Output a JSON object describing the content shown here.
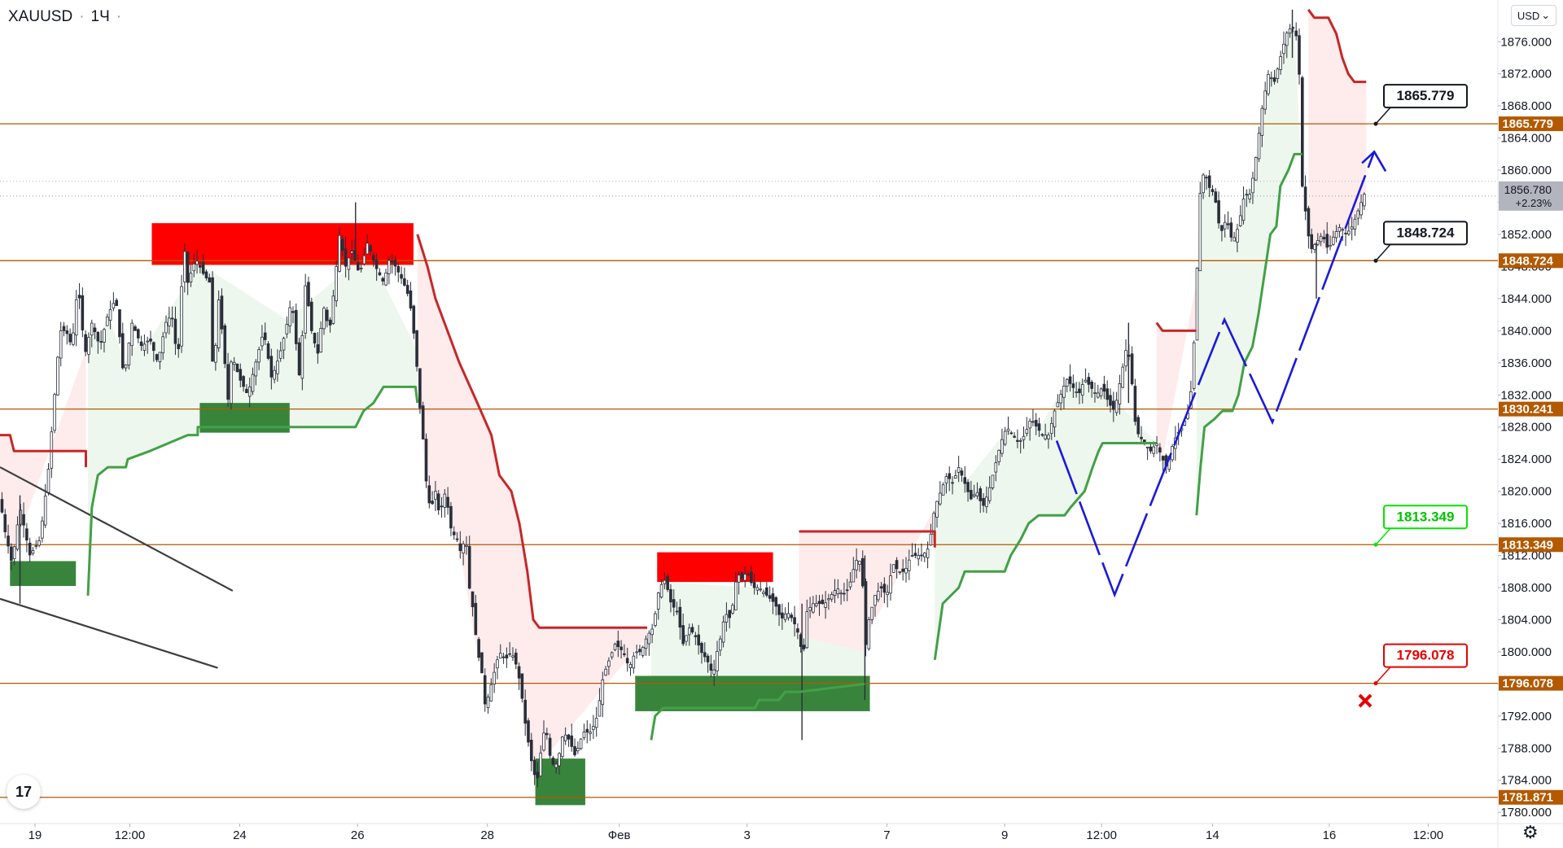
{
  "header": {
    "symbol": "XAUUSD",
    "timeframe": "1Ч",
    "currency": "USD",
    "currency_arrow": "⌄",
    "logo_text": "17"
  },
  "chart_data": {
    "type": "candlestick",
    "symbol": "XAUUSD",
    "timeframe": "1Ч",
    "ylim": [
      1778.6,
      1881.2
    ],
    "y_ticks": [
      "1876.000",
      "1872.000",
      "1868.000",
      "1864.000",
      "1860.000",
      "1856.000",
      "1852.000",
      "1848.000",
      "1844.000",
      "1840.000",
      "1836.000",
      "1832.000",
      "1828.000",
      "1824.000",
      "1820.000",
      "1816.000",
      "1812.000",
      "1808.000",
      "1804.000",
      "1800.000",
      "1796.000",
      "1792.000",
      "1788.000",
      "1784.000",
      "1780.000"
    ],
    "x_ticks": [
      "19",
      "12:00",
      "24",
      "26",
      "28",
      "Фев",
      "3",
      "7",
      "9",
      "12:00",
      "14",
      "16",
      "12:00"
    ],
    "last_price": "1856.780",
    "last_change": "+2.23%",
    "levels": [
      {
        "price": 1865.779,
        "label": "1865.779"
      },
      {
        "price": 1848.724,
        "label": "1848.724"
      },
      {
        "price": 1830.241,
        "label": "1830.241"
      },
      {
        "price": 1813.349,
        "label": "1813.349"
      },
      {
        "price": 1796.078,
        "label": "1796.078"
      },
      {
        "price": 1781.871,
        "label": "1781.871"
      }
    ],
    "callouts": [
      {
        "label": "1865.779",
        "style": "black"
      },
      {
        "label": "1848.724",
        "style": "black"
      },
      {
        "label": "1813.349",
        "style": "green"
      },
      {
        "label": "1796.078",
        "style": "red"
      }
    ],
    "price_path": [
      [
        0,
        1819
      ],
      [
        5,
        1815
      ],
      [
        12,
        1811
      ],
      [
        20,
        1818
      ],
      [
        30,
        1812
      ],
      [
        40,
        1814
      ],
      [
        48,
        1822
      ],
      [
        60,
        1840
      ],
      [
        66,
        1840
      ],
      [
        72,
        1838
      ],
      [
        78,
        1846
      ],
      [
        85,
        1837
      ],
      [
        92,
        1841
      ],
      [
        100,
        1838
      ],
      [
        108,
        1842
      ],
      [
        116,
        1844
      ],
      [
        124,
        1834
      ],
      [
        132,
        1841
      ],
      [
        142,
        1838
      ],
      [
        150,
        1839
      ],
      [
        158,
        1836
      ],
      [
        166,
        1841
      ],
      [
        172,
        1842
      ],
      [
        178,
        1836
      ],
      [
        184,
        1851
      ],
      [
        188,
        1846
      ],
      [
        196,
        1849
      ],
      [
        204,
        1847
      ],
      [
        210,
        1846
      ],
      [
        214,
        1832
      ],
      [
        218,
        1845
      ],
      [
        224,
        1838
      ],
      [
        228,
        1831
      ],
      [
        232,
        1837
      ],
      [
        240,
        1834
      ],
      [
        248,
        1832
      ],
      [
        256,
        1836
      ],
      [
        264,
        1840
      ],
      [
        272,
        1834
      ],
      [
        280,
        1837
      ],
      [
        286,
        1840
      ],
      [
        292,
        1844
      ],
      [
        300,
        1834
      ],
      [
        306,
        1846
      ],
      [
        312,
        1840
      ],
      [
        318,
        1837
      ],
      [
        324,
        1843
      ],
      [
        330,
        1840
      ],
      [
        336,
        1847
      ],
      [
        340,
        1852
      ],
      [
        346,
        1848
      ],
      [
        352,
        1850
      ],
      [
        360,
        1847
      ],
      [
        368,
        1851
      ],
      [
        376,
        1848
      ],
      [
        384,
        1846
      ],
      [
        390,
        1849
      ],
      [
        396,
        1848
      ],
      [
        404,
        1846
      ],
      [
        410,
        1844
      ],
      [
        416,
        1838
      ],
      [
        420,
        1831
      ],
      [
        424,
        1826
      ],
      [
        428,
        1819
      ],
      [
        432,
        1818
      ],
      [
        436,
        1820
      ],
      [
        440,
        1817
      ],
      [
        446,
        1820
      ],
      [
        452,
        1815
      ],
      [
        458,
        1814
      ],
      [
        462,
        1812
      ],
      [
        466,
        1815
      ],
      [
        470,
        1808
      ],
      [
        474,
        1805
      ],
      [
        478,
        1800
      ],
      [
        482,
        1798
      ],
      [
        486,
        1793
      ],
      [
        490,
        1795
      ],
      [
        494,
        1797
      ],
      [
        500,
        1800
      ],
      [
        506,
        1799
      ],
      [
        512,
        1800
      ],
      [
        518,
        1798
      ],
      [
        522,
        1795
      ],
      [
        526,
        1791
      ],
      [
        530,
        1788
      ],
      [
        534,
        1785
      ],
      [
        538,
        1784
      ],
      [
        542,
        1788
      ],
      [
        546,
        1791
      ],
      [
        552,
        1786
      ],
      [
        558,
        1786
      ],
      [
        564,
        1790
      ],
      [
        570,
        1789
      ],
      [
        576,
        1787
      ],
      [
        584,
        1790
      ],
      [
        592,
        1790
      ],
      [
        598,
        1792
      ],
      [
        604,
        1797
      ],
      [
        610,
        1799
      ],
      [
        616,
        1801
      ],
      [
        624,
        1800
      ],
      [
        630,
        1798
      ],
      [
        636,
        1800
      ],
      [
        642,
        1800
      ],
      [
        648,
        1802
      ],
      [
        654,
        1803
      ],
      [
        660,
        1808
      ],
      [
        666,
        1809
      ],
      [
        672,
        1806
      ],
      [
        678,
        1805
      ],
      [
        684,
        1801
      ],
      [
        690,
        1803
      ],
      [
        696,
        1802
      ],
      [
        702,
        1800
      ],
      [
        708,
        1799
      ],
      [
        714,
        1797
      ],
      [
        718,
        1800
      ],
      [
        722,
        1802
      ],
      [
        726,
        1805
      ],
      [
        730,
        1804
      ],
      [
        734,
        1806
      ],
      [
        738,
        1810
      ],
      [
        742,
        1809
      ],
      [
        748,
        1810
      ],
      [
        754,
        1808
      ],
      [
        760,
        1808
      ],
      [
        768,
        1807
      ],
      [
        776,
        1806
      ],
      [
        782,
        1804
      ],
      [
        788,
        1805
      ],
      [
        794,
        1804
      ],
      [
        800,
        1802
      ],
      [
        804,
        1799
      ],
      [
        808,
        1805
      ],
      [
        814,
        1806
      ],
      [
        820,
        1806
      ],
      [
        826,
        1806
      ],
      [
        832,
        1807
      ],
      [
        838,
        1808
      ],
      [
        844,
        1807
      ],
      [
        850,
        1808
      ],
      [
        856,
        1811
      ],
      [
        860,
        1812
      ],
      [
        864,
        1808
      ],
      [
        866,
        1800
      ],
      [
        870,
        1804
      ],
      [
        876,
        1807
      ],
      [
        882,
        1808
      ],
      [
        888,
        1807
      ],
      [
        894,
        1811
      ],
      [
        900,
        1810
      ],
      [
        906,
        1810
      ],
      [
        912,
        1812
      ],
      [
        918,
        1812
      ],
      [
        924,
        1812
      ],
      [
        930,
        1813
      ],
      [
        936,
        1818
      ],
      [
        942,
        1820
      ],
      [
        948,
        1822
      ],
      [
        954,
        1821
      ],
      [
        960,
        1823
      ],
      [
        966,
        1821
      ],
      [
        972,
        1819
      ],
      [
        978,
        1820
      ],
      [
        984,
        1818
      ],
      [
        990,
        1820
      ],
      [
        996,
        1823
      ],
      [
        1002,
        1826
      ],
      [
        1008,
        1828
      ],
      [
        1014,
        1827
      ],
      [
        1020,
        1826
      ],
      [
        1026,
        1827
      ],
      [
        1032,
        1829
      ],
      [
        1038,
        1828
      ],
      [
        1044,
        1827
      ],
      [
        1050,
        1827
      ],
      [
        1056,
        1830
      ],
      [
        1062,
        1832
      ],
      [
        1068,
        1834
      ],
      [
        1074,
        1833
      ],
      [
        1080,
        1832
      ],
      [
        1086,
        1834
      ],
      [
        1092,
        1833
      ],
      [
        1098,
        1832
      ],
      [
        1104,
        1833
      ],
      [
        1110,
        1831
      ],
      [
        1116,
        1830
      ],
      [
        1122,
        1834
      ],
      [
        1128,
        1838
      ],
      [
        1132,
        1836
      ],
      [
        1136,
        1829
      ],
      [
        1140,
        1827
      ],
      [
        1146,
        1826
      ],
      [
        1152,
        1825
      ],
      [
        1158,
        1826
      ],
      [
        1164,
        1824
      ],
      [
        1168,
        1823
      ],
      [
        1172,
        1825
      ],
      [
        1178,
        1827
      ],
      [
        1184,
        1828
      ],
      [
        1190,
        1830
      ],
      [
        1194,
        1834
      ],
      [
        1198,
        1846
      ],
      [
        1202,
        1858
      ],
      [
        1206,
        1860
      ],
      [
        1210,
        1858
      ],
      [
        1216,
        1857
      ],
      [
        1222,
        1852
      ],
      [
        1228,
        1854
      ],
      [
        1234,
        1851
      ],
      [
        1240,
        1853
      ],
      [
        1246,
        1857
      ],
      [
        1252,
        1857
      ],
      [
        1258,
        1862
      ],
      [
        1264,
        1868
      ],
      [
        1270,
        1872
      ],
      [
        1276,
        1871
      ],
      [
        1282,
        1874
      ],
      [
        1288,
        1877
      ],
      [
        1294,
        1878
      ],
      [
        1300,
        1876
      ],
      [
        1304,
        1858
      ],
      [
        1308,
        1854
      ],
      [
        1312,
        1850
      ],
      [
        1318,
        1851
      ],
      [
        1324,
        1852
      ],
      [
        1330,
        1850
      ],
      [
        1336,
        1852
      ],
      [
        1342,
        1853
      ],
      [
        1348,
        1852
      ],
      [
        1354,
        1853
      ],
      [
        1360,
        1855
      ],
      [
        1366,
        1857
      ]
    ],
    "supertrend": [
      {
        "trend": "down",
        "points": [
          [
            0,
            1827
          ],
          [
            10,
            1827
          ],
          [
            14,
            1825
          ],
          [
            86,
            1825
          ],
          [
            86,
            1823
          ]
        ]
      },
      {
        "trend": "up",
        "points": [
          [
            88,
            1807
          ],
          [
            92,
            1818
          ],
          [
            98,
            1822
          ],
          [
            108,
            1823
          ],
          [
            126,
            1823
          ],
          [
            128,
            1824
          ],
          [
            150,
            1825
          ],
          [
            188,
            1827
          ],
          [
            198,
            1827
          ],
          [
            198,
            1828
          ],
          [
            288,
            1828
          ],
          [
            356,
            1828
          ],
          [
            364,
            1830
          ],
          [
            374,
            1831
          ],
          [
            384,
            1833
          ],
          [
            416,
            1833
          ],
          [
            418,
            1831
          ]
        ]
      },
      {
        "trend": "down",
        "points": [
          [
            418,
            1852
          ],
          [
            428,
            1848
          ],
          [
            436,
            1844
          ],
          [
            448,
            1840
          ],
          [
            460,
            1836
          ],
          [
            478,
            1831
          ],
          [
            492,
            1827
          ],
          [
            500,
            1822
          ],
          [
            512,
            1820
          ],
          [
            520,
            1816
          ],
          [
            528,
            1810
          ],
          [
            534,
            1804
          ],
          [
            540,
            1803
          ],
          [
            648,
            1803
          ]
        ]
      },
      {
        "trend": "up",
        "points": [
          [
            652,
            1789
          ],
          [
            656,
            1792
          ],
          [
            664,
            1793
          ],
          [
            756,
            1793
          ],
          [
            760,
            1794
          ],
          [
            780,
            1794
          ],
          [
            786,
            1795
          ],
          [
            800,
            1795
          ],
          [
            866,
            1796
          ]
        ]
      },
      {
        "trend": "down",
        "points": [
          [
            800,
            1815
          ],
          [
            866,
            1815
          ],
          [
            868,
            1815
          ],
          [
            936,
            1815
          ],
          [
            936,
            1813
          ]
        ]
      },
      {
        "trend": "up",
        "points": [
          [
            936,
            1799
          ],
          [
            944,
            1806
          ],
          [
            960,
            1808
          ],
          [
            966,
            1810
          ],
          [
            1006,
            1810
          ],
          [
            1012,
            1812
          ],
          [
            1022,
            1814
          ],
          [
            1030,
            1816
          ],
          [
            1040,
            1817
          ],
          [
            1066,
            1817
          ],
          [
            1072,
            1818
          ],
          [
            1086,
            1820
          ],
          [
            1094,
            1823
          ],
          [
            1100,
            1825
          ],
          [
            1104,
            1826
          ],
          [
            1158,
            1826
          ]
        ]
      },
      {
        "trend": "down",
        "points": [
          [
            1158,
            1841
          ],
          [
            1164,
            1840
          ],
          [
            1198,
            1840
          ]
        ]
      },
      {
        "trend": "up",
        "points": [
          [
            1198,
            1817
          ],
          [
            1202,
            1823
          ],
          [
            1206,
            1828
          ],
          [
            1216,
            1829
          ],
          [
            1224,
            1830
          ],
          [
            1234,
            1830
          ],
          [
            1240,
            1832
          ],
          [
            1246,
            1836
          ],
          [
            1254,
            1838
          ],
          [
            1260,
            1842
          ],
          [
            1266,
            1847
          ],
          [
            1272,
            1852
          ],
          [
            1278,
            1853
          ],
          [
            1282,
            1858
          ],
          [
            1290,
            1860
          ],
          [
            1296,
            1862
          ],
          [
            1304,
            1862
          ]
        ]
      },
      {
        "trend": "down",
        "points": [
          [
            1310,
            1880
          ],
          [
            1316,
            1879
          ],
          [
            1330,
            1879
          ],
          [
            1338,
            1877
          ],
          [
            1344,
            1874
          ],
          [
            1350,
            1872
          ],
          [
            1356,
            1871
          ],
          [
            1368,
            1871
          ]
        ]
      }
    ],
    "zones": [
      {
        "kind": "supply",
        "x0": 152,
        "x1": 414,
        "p0": 1853.4,
        "p1": 1848.2
      },
      {
        "kind": "demand",
        "x0": 200,
        "x1": 290,
        "p0": 1831.0,
        "p1": 1827.3
      },
      {
        "kind": "demand",
        "x0": 10,
        "x1": 76,
        "p0": 1811.3,
        "p1": 1808.2
      },
      {
        "kind": "supply",
        "x0": 658,
        "x1": 774,
        "p0": 1812.4,
        "p1": 1808.7
      },
      {
        "kind": "demand",
        "x0": 636,
        "x1": 871,
        "p0": 1797.0,
        "p1": 1792.6
      },
      {
        "kind": "demand",
        "x0": 536,
        "x1": 586,
        "p0": 1786.7,
        "p1": 1780.9
      }
    ],
    "trend_lines": [
      {
        "points": [
          [
            0,
            1823
          ],
          [
            233,
            1807.6
          ]
        ]
      },
      {
        "points": [
          [
            0,
            1806.6
          ],
          [
            218,
            1798.0
          ]
        ]
      }
    ],
    "projection_path": [
      [
        1058,
        1826.3
      ],
      [
        1116,
        1807.1
      ],
      [
        1226,
        1841.4
      ],
      [
        1274,
        1828.6
      ],
      [
        1376,
        1862.3
      ]
    ]
  }
}
